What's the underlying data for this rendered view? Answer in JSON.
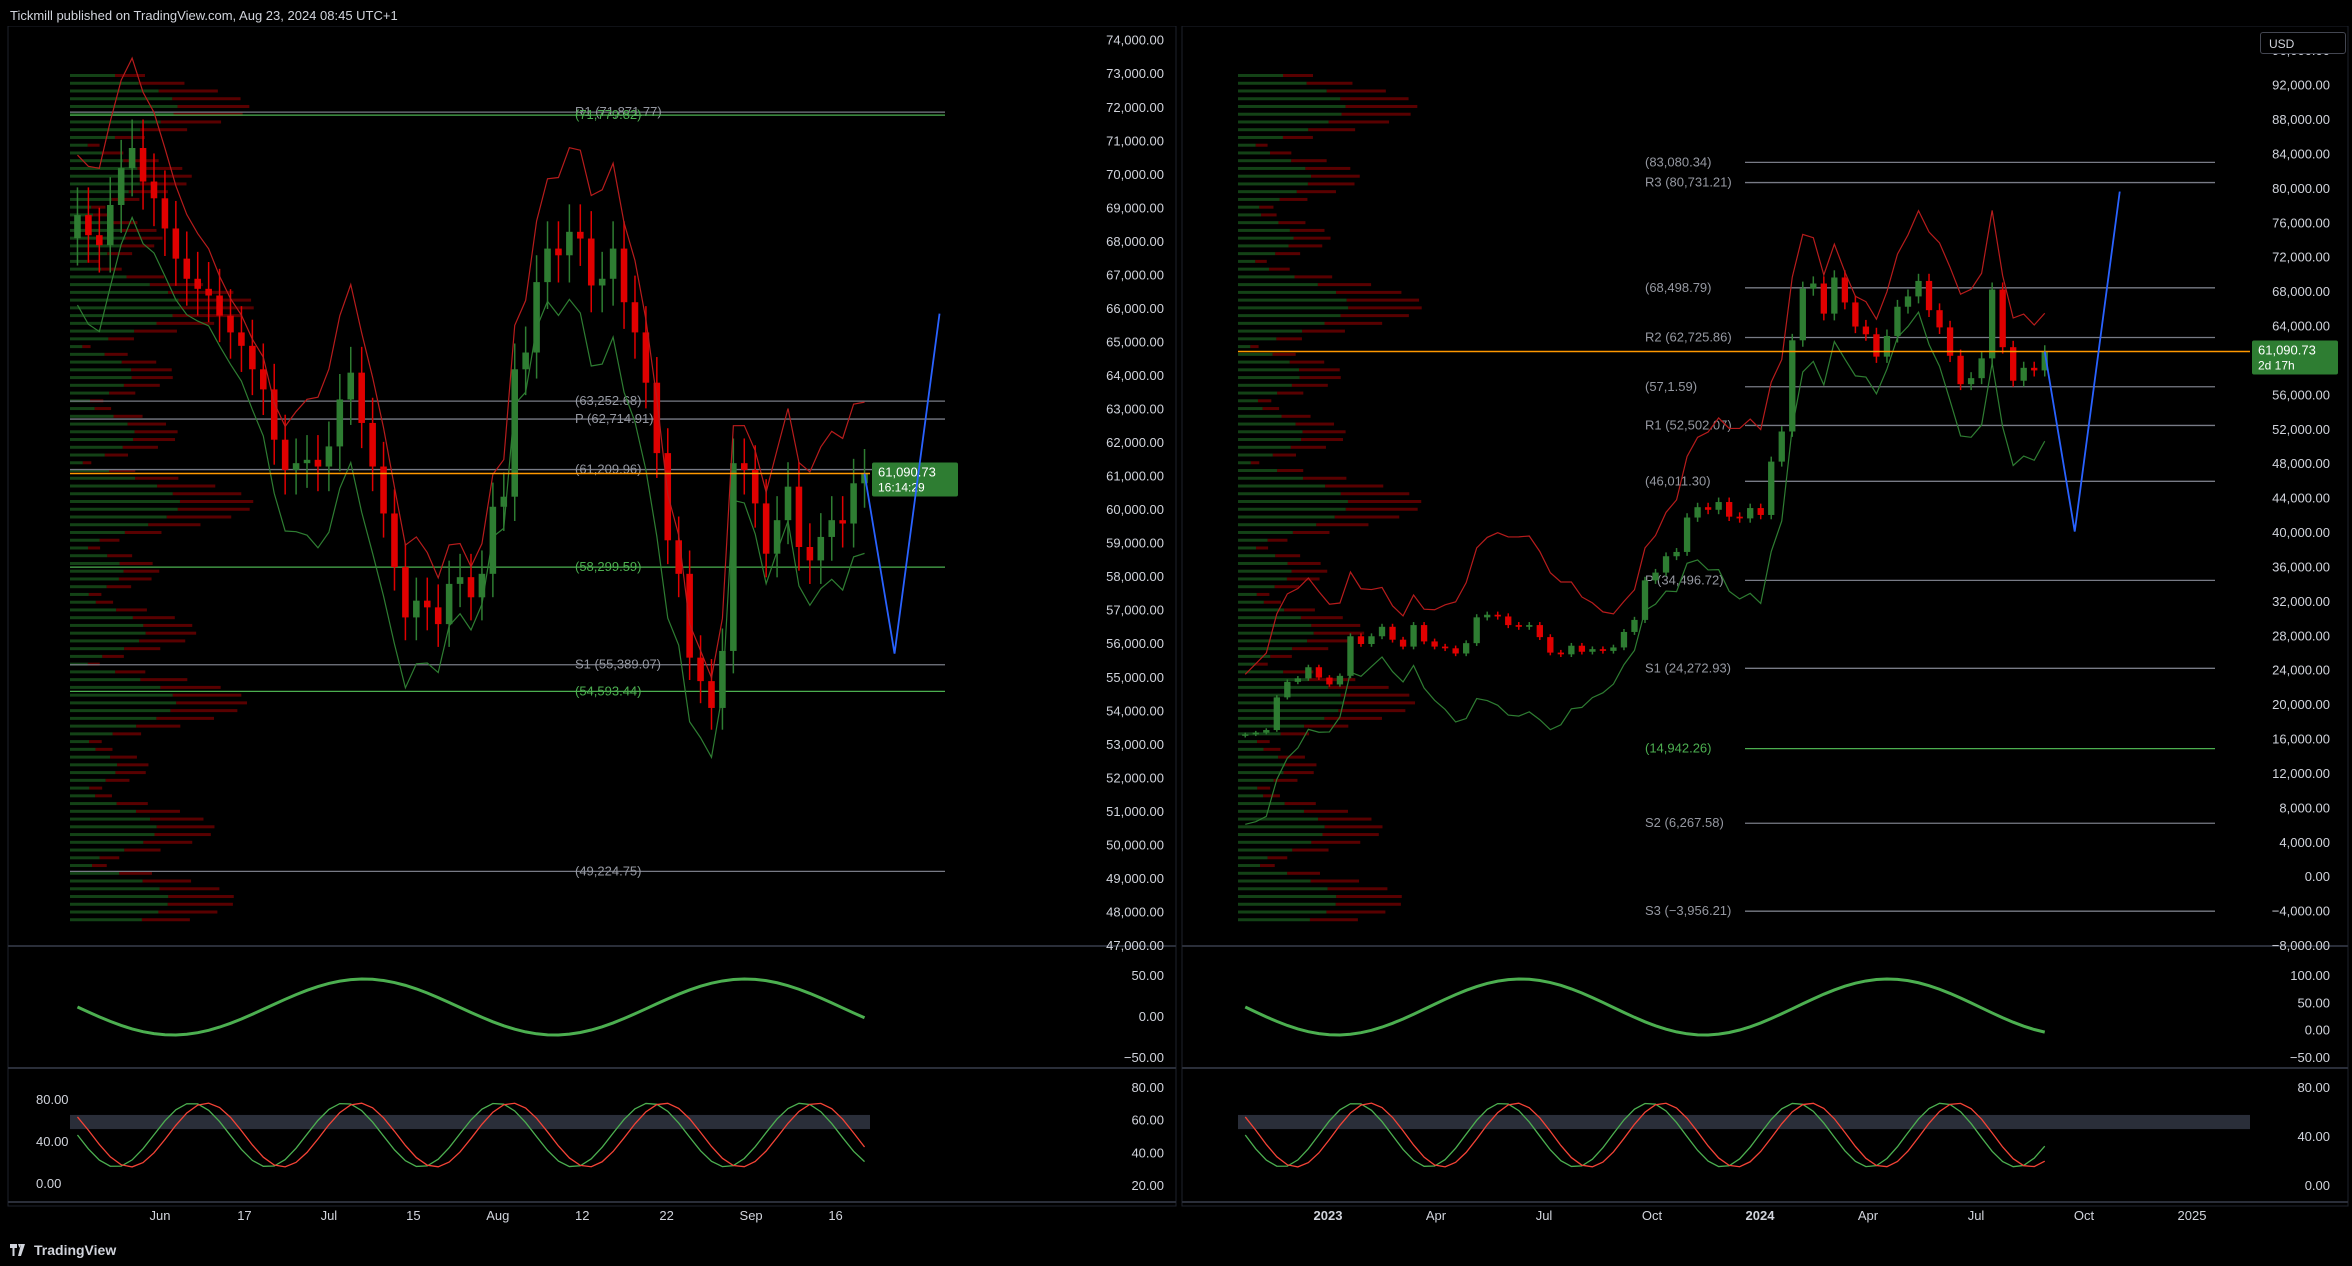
{
  "header": {
    "published": "Tickmill published on TradingView.com, Aug 23, 2024 08:45 UTC+1"
  },
  "footer": {
    "brand": "TradingView"
  },
  "currency": "USD",
  "colors": {
    "up": "#2e7d32",
    "down": "#e00000",
    "orange": "#ff9800",
    "purple": "#b000c8",
    "blue": "#2962ff",
    "gray": "#787b86"
  },
  "chart_data": [
    {
      "type": "candlestick",
      "panel": "left",
      "interval": "daily",
      "y_ticks": [
        "74,000.00",
        "73,000.00",
        "72,000.00",
        "71,000.00",
        "70,000.00",
        "69,000.00",
        "68,000.00",
        "67,000.00",
        "66,000.00",
        "65,000.00",
        "64,000.00",
        "63,000.00",
        "62,000.00",
        "61,000.00",
        "60,000.00",
        "59,000.00",
        "58,000.00",
        "57,000.00",
        "56,000.00",
        "55,000.00",
        "54,000.00",
        "53,000.00",
        "52,000.00",
        "51,000.00",
        "50,000.00",
        "49,000.00",
        "48,000.00",
        "47,000.00"
      ],
      "ylim": [
        47000,
        74200
      ],
      "x_ticks": [
        "Jun",
        "17",
        "Jul",
        "15",
        "Aug",
        "12",
        "22",
        "Sep",
        "16"
      ],
      "last_price": "61,090.73",
      "countdown": "16:14:29",
      "levels": [
        {
          "label": "R1 (71,871.77)",
          "value": 71870
        },
        {
          "label": "(71,779.82)",
          "value": 71780
        },
        {
          "label": "(63,252.68)",
          "value": 63250
        },
        {
          "label": "P (62,714.91)",
          "value": 62715
        },
        {
          "label": "(61,209.96)",
          "value": 61210
        },
        {
          "label": "(58,299.59)",
          "value": 58300
        },
        {
          "label": "S1 (55,389.07)",
          "value": 55389
        },
        {
          "label": "(54,593.44)",
          "value": 54593
        },
        {
          "label": "(49,224.75)",
          "value": 49225
        }
      ],
      "closes": [
        68800,
        68200,
        67900,
        69100,
        70200,
        70800,
        69800,
        69300,
        68400,
        67500,
        66900,
        66600,
        66400,
        65800,
        65300,
        64900,
        64200,
        63600,
        62100,
        61200,
        61400,
        61500,
        61300,
        61900,
        63300,
        64100,
        62600,
        61300,
        59900,
        58300,
        56800,
        57300,
        57100,
        56600,
        57800,
        58000,
        57400,
        58100,
        60100,
        60400,
        64200,
        64700,
        66800,
        67800,
        67600,
        68300,
        68100,
        66700,
        66900,
        67800,
        66200,
        65300,
        63800,
        61700,
        59100,
        58100,
        55600,
        54900,
        54100,
        55800,
        61400,
        61200,
        60200,
        58700,
        59700,
        60700,
        58900,
        58500,
        59200,
        59700,
        59600,
        60800,
        61090
      ],
      "macd_ticks": [
        "50.00",
        "0.00",
        "−50.00"
      ],
      "stoch_ticks": [
        "80.00",
        "60.00",
        "40.00",
        "20.00"
      ],
      "stoch_left_ticks": [
        "80.00",
        "40.00",
        "0.00"
      ]
    },
    {
      "type": "candlestick",
      "panel": "right",
      "interval": "weekly",
      "y_ticks": [
        "96,000.00",
        "92,000.00",
        "88,000.00",
        "84,000.00",
        "80,000.00",
        "76,000.00",
        "72,000.00",
        "68,000.00",
        "64,000.00",
        "60,000.00",
        "56,000.00",
        "52,000.00",
        "48,000.00",
        "44,000.00",
        "40,000.00",
        "36,000.00",
        "32,000.00",
        "28,000.00",
        "24,000.00",
        "20,000.00",
        "16,000.00",
        "12,000.00",
        "8,000.00",
        "4,000.00",
        "0.00",
        "−4,000.00",
        "−8,000.00"
      ],
      "ylim": [
        -8000,
        98000
      ],
      "x_ticks": [
        "2023",
        "Apr",
        "Jul",
        "Oct",
        "2024",
        "Apr",
        "Jul",
        "Oct",
        "2025"
      ],
      "last_price": "61,090.73",
      "countdown": "2d 17h",
      "levels": [
        {
          "label": "(83,080.34)",
          "value": 83080
        },
        {
          "label": "R3 (80,731.21)",
          "value": 80731
        },
        {
          "label": "(68,498.79)",
          "value": 68499
        },
        {
          "label": "R2 (62,725.86)",
          "value": 62726
        },
        {
          "label": "(57,1.59)",
          "value": 57000
        },
        {
          "label": "R1 (52,502.07)",
          "value": 52502
        },
        {
          "label": "(46,011.30)",
          "value": 46011
        },
        {
          "label": "P (34,496.72)",
          "value": 34497
        },
        {
          "label": "S1 (24,272.93)",
          "value": 24273
        },
        {
          "label": "(14,942.26)",
          "value": 14942
        },
        {
          "label": "S2 (6,267.58)",
          "value": 6268
        },
        {
          "label": "S3 (−3,956.21)",
          "value": -3956
        }
      ],
      "closes": [
        16600,
        16800,
        17100,
        20900,
        22700,
        23100,
        24400,
        23200,
        22400,
        23400,
        28000,
        27100,
        28000,
        29100,
        27600,
        26800,
        29300,
        27400,
        26800,
        26600,
        26000,
        27200,
        30200,
        30500,
        30300,
        29300,
        29100,
        29300,
        27900,
        26100,
        25900,
        26900,
        26200,
        26500,
        26300,
        26700,
        28500,
        29900,
        34500,
        35400,
        37300,
        37800,
        41800,
        43000,
        42700,
        43600,
        41900,
        41700,
        42900,
        42100,
        48300,
        51800,
        62400,
        68400,
        69000,
        65500,
        69700,
        66800,
        64000,
        63100,
        60500,
        62900,
        66300,
        67500,
        69300,
        65900,
        63900,
        60600,
        57300,
        58000,
        60300,
        68300,
        61600,
        57700,
        59200,
        58900,
        61090
      ],
      "macd_ticks": [
        "100.00",
        "50.00",
        "0.00",
        "−50.00"
      ],
      "stoch_ticks": [
        "80.00",
        "40.00",
        "0.00"
      ]
    }
  ]
}
